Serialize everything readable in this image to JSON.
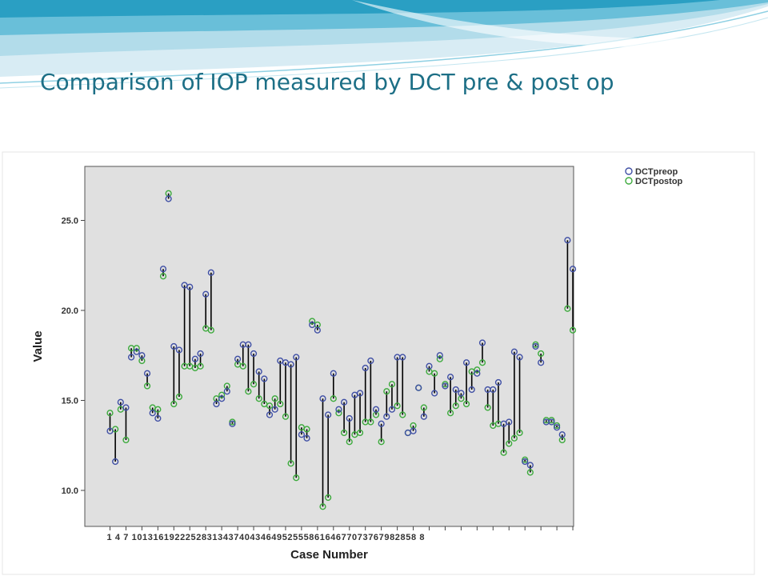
{
  "slide": {
    "title": "Comparison of IOP measured by DCT pre & post op"
  },
  "colors": {
    "title": "#1d6f86",
    "preop": "#3f4fa5",
    "postop": "#3caa3c",
    "plot_background": "#e0e0e0",
    "connector": "#000000"
  },
  "chart_data": {
    "type": "scatter",
    "variant": "paired dot plot with drop lines",
    "xlabel": "Case Number",
    "ylabel": "Value",
    "ylim": [
      8.0,
      28.0
    ],
    "yticks": [
      10.0,
      15.0,
      20.0,
      25.0
    ],
    "ytick_labels": [
      "10.0",
      "15.0",
      "20.0",
      "25.0"
    ],
    "xticks": [
      1,
      4,
      7,
      10,
      13,
      16,
      19,
      22,
      25,
      28,
      31,
      34,
      37,
      40,
      43,
      46,
      49,
      52,
      55,
      58,
      61,
      64,
      67,
      70,
      73,
      76,
      79,
      82,
      85,
      88
    ],
    "xtick_text": "1 4 7 10131619222528313437404346495255586164677073767982858 8",
    "legend_position": "top-right outside plot",
    "grid": false,
    "cases": [
      1,
      2,
      3,
      4,
      5,
      6,
      7,
      8,
      9,
      10,
      11,
      12,
      13,
      14,
      15,
      16,
      17,
      18,
      19,
      20,
      21,
      22,
      23,
      24,
      25,
      26,
      27,
      28,
      29,
      30,
      31,
      32,
      33,
      34,
      35,
      36,
      37,
      38,
      39,
      40,
      41,
      42,
      43,
      44,
      45,
      46,
      47,
      48,
      49,
      50,
      51,
      52,
      53,
      54,
      55,
      56,
      57,
      58,
      59,
      60,
      61,
      62,
      63,
      64,
      65,
      66,
      67,
      68,
      69,
      70,
      71,
      72,
      73,
      74,
      75,
      76,
      77,
      78,
      79,
      80,
      81,
      82,
      83,
      84,
      85,
      86,
      87,
      88
    ],
    "series": [
      {
        "name": "DCTpreop",
        "values": [
          13.3,
          11.6,
          14.9,
          14.6,
          17.4,
          17.7,
          17.5,
          16.5,
          14.3,
          14.0,
          22.3,
          26.2,
          18.0,
          17.8,
          21.4,
          21.3,
          17.3,
          17.6,
          20.9,
          22.1,
          14.8,
          15.1,
          15.5,
          13.7,
          17.3,
          18.1,
          18.1,
          17.6,
          16.6,
          16.2,
          14.2,
          14.5,
          17.2,
          17.1,
          17.0,
          17.4,
          13.1,
          12.9,
          19.2,
          18.9,
          15.1,
          14.2,
          16.5,
          14.5,
          14.9,
          14.0,
          15.3,
          15.4,
          16.8,
          17.2,
          14.5,
          13.7,
          14.1,
          14.5,
          17.4,
          17.4,
          13.2,
          13.3,
          15.7,
          14.1,
          16.9,
          15.4,
          17.5,
          15.8,
          16.3,
          15.6,
          15.4,
          17.1,
          15.6,
          16.5,
          18.2,
          15.6,
          15.6,
          16.0,
          13.7,
          13.8,
          17.7,
          17.4,
          11.6,
          11.4,
          18.0,
          17.1,
          13.8,
          13.8,
          13.5,
          13.1,
          23.9,
          22.3
        ]
      },
      {
        "name": "DCTpostop",
        "values": [
          14.3,
          13.4,
          14.5,
          12.8,
          17.9,
          17.9,
          17.2,
          15.8,
          14.6,
          14.5,
          21.9,
          26.5,
          14.8,
          15.2,
          16.9,
          16.9,
          16.8,
          16.9,
          19.0,
          18.9,
          15.1,
          15.3,
          15.8,
          13.8,
          17.0,
          16.9,
          15.5,
          15.9,
          15.1,
          14.8,
          14.7,
          15.1,
          14.8,
          14.1,
          11.5,
          10.7,
          13.5,
          13.4,
          19.4,
          19.2,
          9.1,
          9.6,
          15.1,
          14.3,
          13.2,
          12.7,
          13.1,
          13.2,
          13.8,
          13.8,
          14.2,
          12.7,
          15.5,
          15.9,
          14.7,
          14.2,
          13.2,
          13.6,
          15.7,
          14.6,
          16.6,
          16.5,
          17.3,
          15.9,
          14.3,
          14.7,
          15.1,
          14.8,
          16.6,
          16.7,
          17.1,
          14.6,
          13.6,
          13.7,
          12.1,
          12.6,
          12.9,
          13.2,
          11.7,
          11.0,
          18.1,
          17.6,
          13.9,
          13.9,
          13.6,
          12.8,
          20.1,
          18.9
        ]
      }
    ]
  }
}
